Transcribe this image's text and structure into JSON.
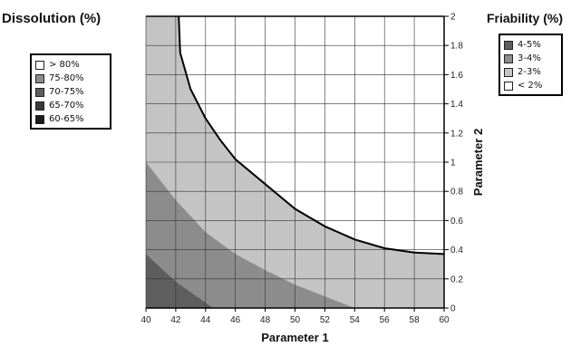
{
  "chart_data": {
    "type": "contour",
    "title_left": "Dissolution (%)",
    "title_right": "Friability (%)",
    "xlabel": "Parameter 1",
    "ylabel": "Parameter 2",
    "xlim": [
      40,
      60
    ],
    "ylim": [
      0,
      2
    ],
    "x_ticks": [
      "40",
      "42",
      "44",
      "46",
      "48",
      "50",
      "52",
      "54",
      "56",
      "58",
      "60"
    ],
    "y_ticks": [
      "0",
      "0.2",
      "0.4",
      "0.6",
      "0.8",
      "1",
      "1.2",
      "1.4",
      "1.6",
      "1.8",
      "2"
    ],
    "grid": true,
    "dissolution_legend": [
      {
        "label": "> 80%",
        "color": "#ffffff"
      },
      {
        "label": "75-80%",
        "color": "#8c8c8c"
      },
      {
        "label": "70-75%",
        "color": "#5e5e5e"
      },
      {
        "label": "65-70%",
        "color": "#3a3a3a"
      },
      {
        "label": "60-65%",
        "color": "#1a1a1a"
      }
    ],
    "friability_legend": [
      {
        "label": "4-5%",
        "color": "#5e5e5e"
      },
      {
        "label": "3-4%",
        "color": "#8c8c8c"
      },
      {
        "label": "2-3%",
        "color": "#c4c4c4"
      },
      {
        "label": "< 2%",
        "color": "#ffffff"
      }
    ],
    "regions": [
      {
        "name": "white_region",
        "points": [
          [
            42.2,
            2
          ],
          [
            42.3,
            1.75
          ],
          [
            43,
            1.5
          ],
          [
            44,
            1.3
          ],
          [
            45,
            1.15
          ],
          [
            46,
            1.02
          ],
          [
            48,
            0.85
          ],
          [
            50,
            0.68
          ],
          [
            52,
            0.56
          ],
          [
            54,
            0.47
          ],
          [
            56,
            0.41
          ],
          [
            58,
            0.38
          ],
          [
            60,
            0.37
          ],
          [
            60,
            2
          ]
        ],
        "color": "#ffffff"
      },
      {
        "name": "light_region",
        "points": [
          [
            40,
            0
          ],
          [
            40,
            2
          ],
          [
            42.2,
            2
          ],
          [
            42.3,
            1.75
          ],
          [
            43,
            1.5
          ],
          [
            44,
            1.3
          ],
          [
            45,
            1.15
          ],
          [
            46,
            1.02
          ],
          [
            48,
            0.85
          ],
          [
            50,
            0.68
          ],
          [
            52,
            0.56
          ],
          [
            54,
            0.47
          ],
          [
            56,
            0.41
          ],
          [
            58,
            0.38
          ],
          [
            60,
            0.37
          ],
          [
            60,
            0
          ]
        ],
        "color": "#c4c4c4"
      },
      {
        "name": "mid_region",
        "points": [
          [
            40,
            1.0
          ],
          [
            42,
            0.74
          ],
          [
            44,
            0.52
          ],
          [
            46,
            0.37
          ],
          [
            48,
            0.26
          ],
          [
            50,
            0.16
          ],
          [
            52,
            0.08
          ],
          [
            54,
            0
          ],
          [
            40,
            0
          ]
        ],
        "color": "#8c8c8c"
      },
      {
        "name": "dark_region",
        "points": [
          [
            40,
            0.37
          ],
          [
            42,
            0.18
          ],
          [
            44.5,
            0
          ],
          [
            40,
            0
          ]
        ],
        "color": "#5e5e5e"
      }
    ]
  }
}
